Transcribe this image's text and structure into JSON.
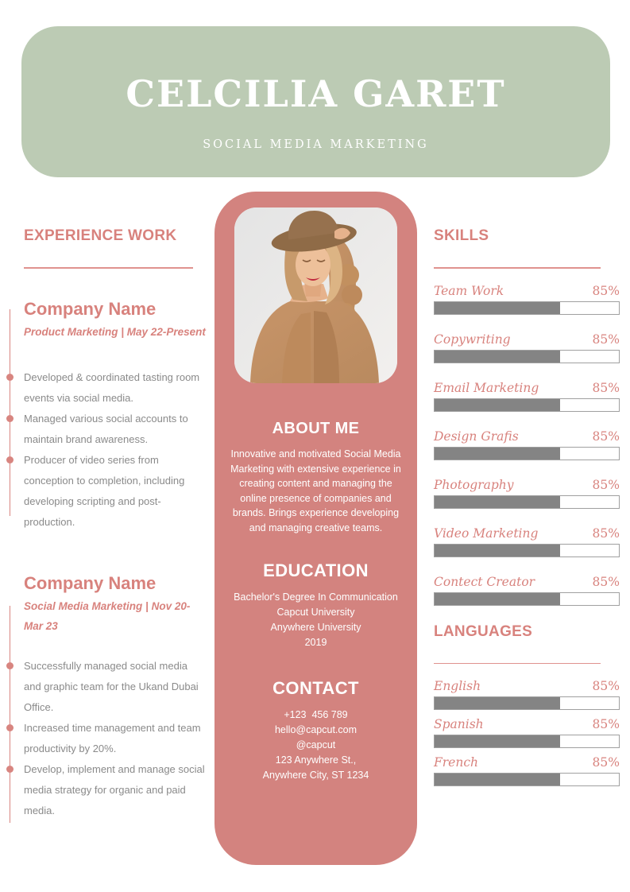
{
  "header": {
    "name": "CELCILIA GARET",
    "subtitle": "SOCIAL MEDIA MARKETING"
  },
  "experience": {
    "title": "EXPERIENCE WORK",
    "jobs": [
      {
        "company": "Company Name",
        "meta": "Product Marketing | May 22-Present",
        "bullets": [
          "Developed & coordinated tasting room events via social media.",
          "Managed various social accounts to maintain brand awareness.",
          "Producer of video series from conception to completion, including developing scripting and post-production."
        ]
      },
      {
        "company": "Company Name",
        "meta": "Social Media Marketing | Nov 20-Mar 23",
        "bullets": [
          "Successfully managed social media and graphic team for the Ukand Dubai Office.",
          "Increased time management and team productivity by 20%.",
          "Develop, implement and manage social media strategy for organic and paid media."
        ]
      }
    ]
  },
  "about": {
    "title": "ABOUT ME",
    "text": "Innovative and motivated Social Media Marketing with extensive experience in creating content and managing the online presence of companies and brands. Brings experience developing and managing creative teams."
  },
  "education": {
    "title": "EDUCATION",
    "lines": [
      "Bachelor's Degree In Communication",
      "Capcut University",
      "Anywhere University",
      "2019"
    ]
  },
  "contact": {
    "title": "CONTACT",
    "lines": [
      "+123  456 789",
      "hello@capcut.com",
      "@capcut",
      "123 Anywhere St.,",
      "Anywhere City, ST 1234"
    ]
  },
  "skills": {
    "title": "SKILLS",
    "items": [
      {
        "label": "Team Work",
        "percent": "85%",
        "fill_pct": 68
      },
      {
        "label": "Copywriting",
        "percent": "85%",
        "fill_pct": 68
      },
      {
        "label": "Email Marketing",
        "percent": "85%",
        "fill_pct": 68
      },
      {
        "label": "Design Grafis",
        "percent": "85%",
        "fill_pct": 68
      },
      {
        "label": "Photography",
        "percent": "85%",
        "fill_pct": 68
      },
      {
        "label": "Video Marketing",
        "percent": "85%",
        "fill_pct": 68
      },
      {
        "label": "Contect Creator",
        "percent": "85%",
        "fill_pct": 68
      }
    ]
  },
  "languages": {
    "title": "LANGUAGES",
    "items": [
      {
        "label": "English",
        "percent": "85%",
        "fill_pct": 68
      },
      {
        "label": "Spanish",
        "percent": "85%",
        "fill_pct": 68
      },
      {
        "label": "French",
        "percent": "85%",
        "fill_pct": 68
      }
    ]
  },
  "photo": {
    "alt": "woman wearing brown hat and knitted cardigan"
  },
  "colors": {
    "header_green": "#bccbb4",
    "card_rose": "#d3837f",
    "accent_text": "#d8827d",
    "body_gray": "#8a8a8a",
    "bar_fill_gray": "#848484",
    "bar_border_gray": "#a0a0a0"
  }
}
